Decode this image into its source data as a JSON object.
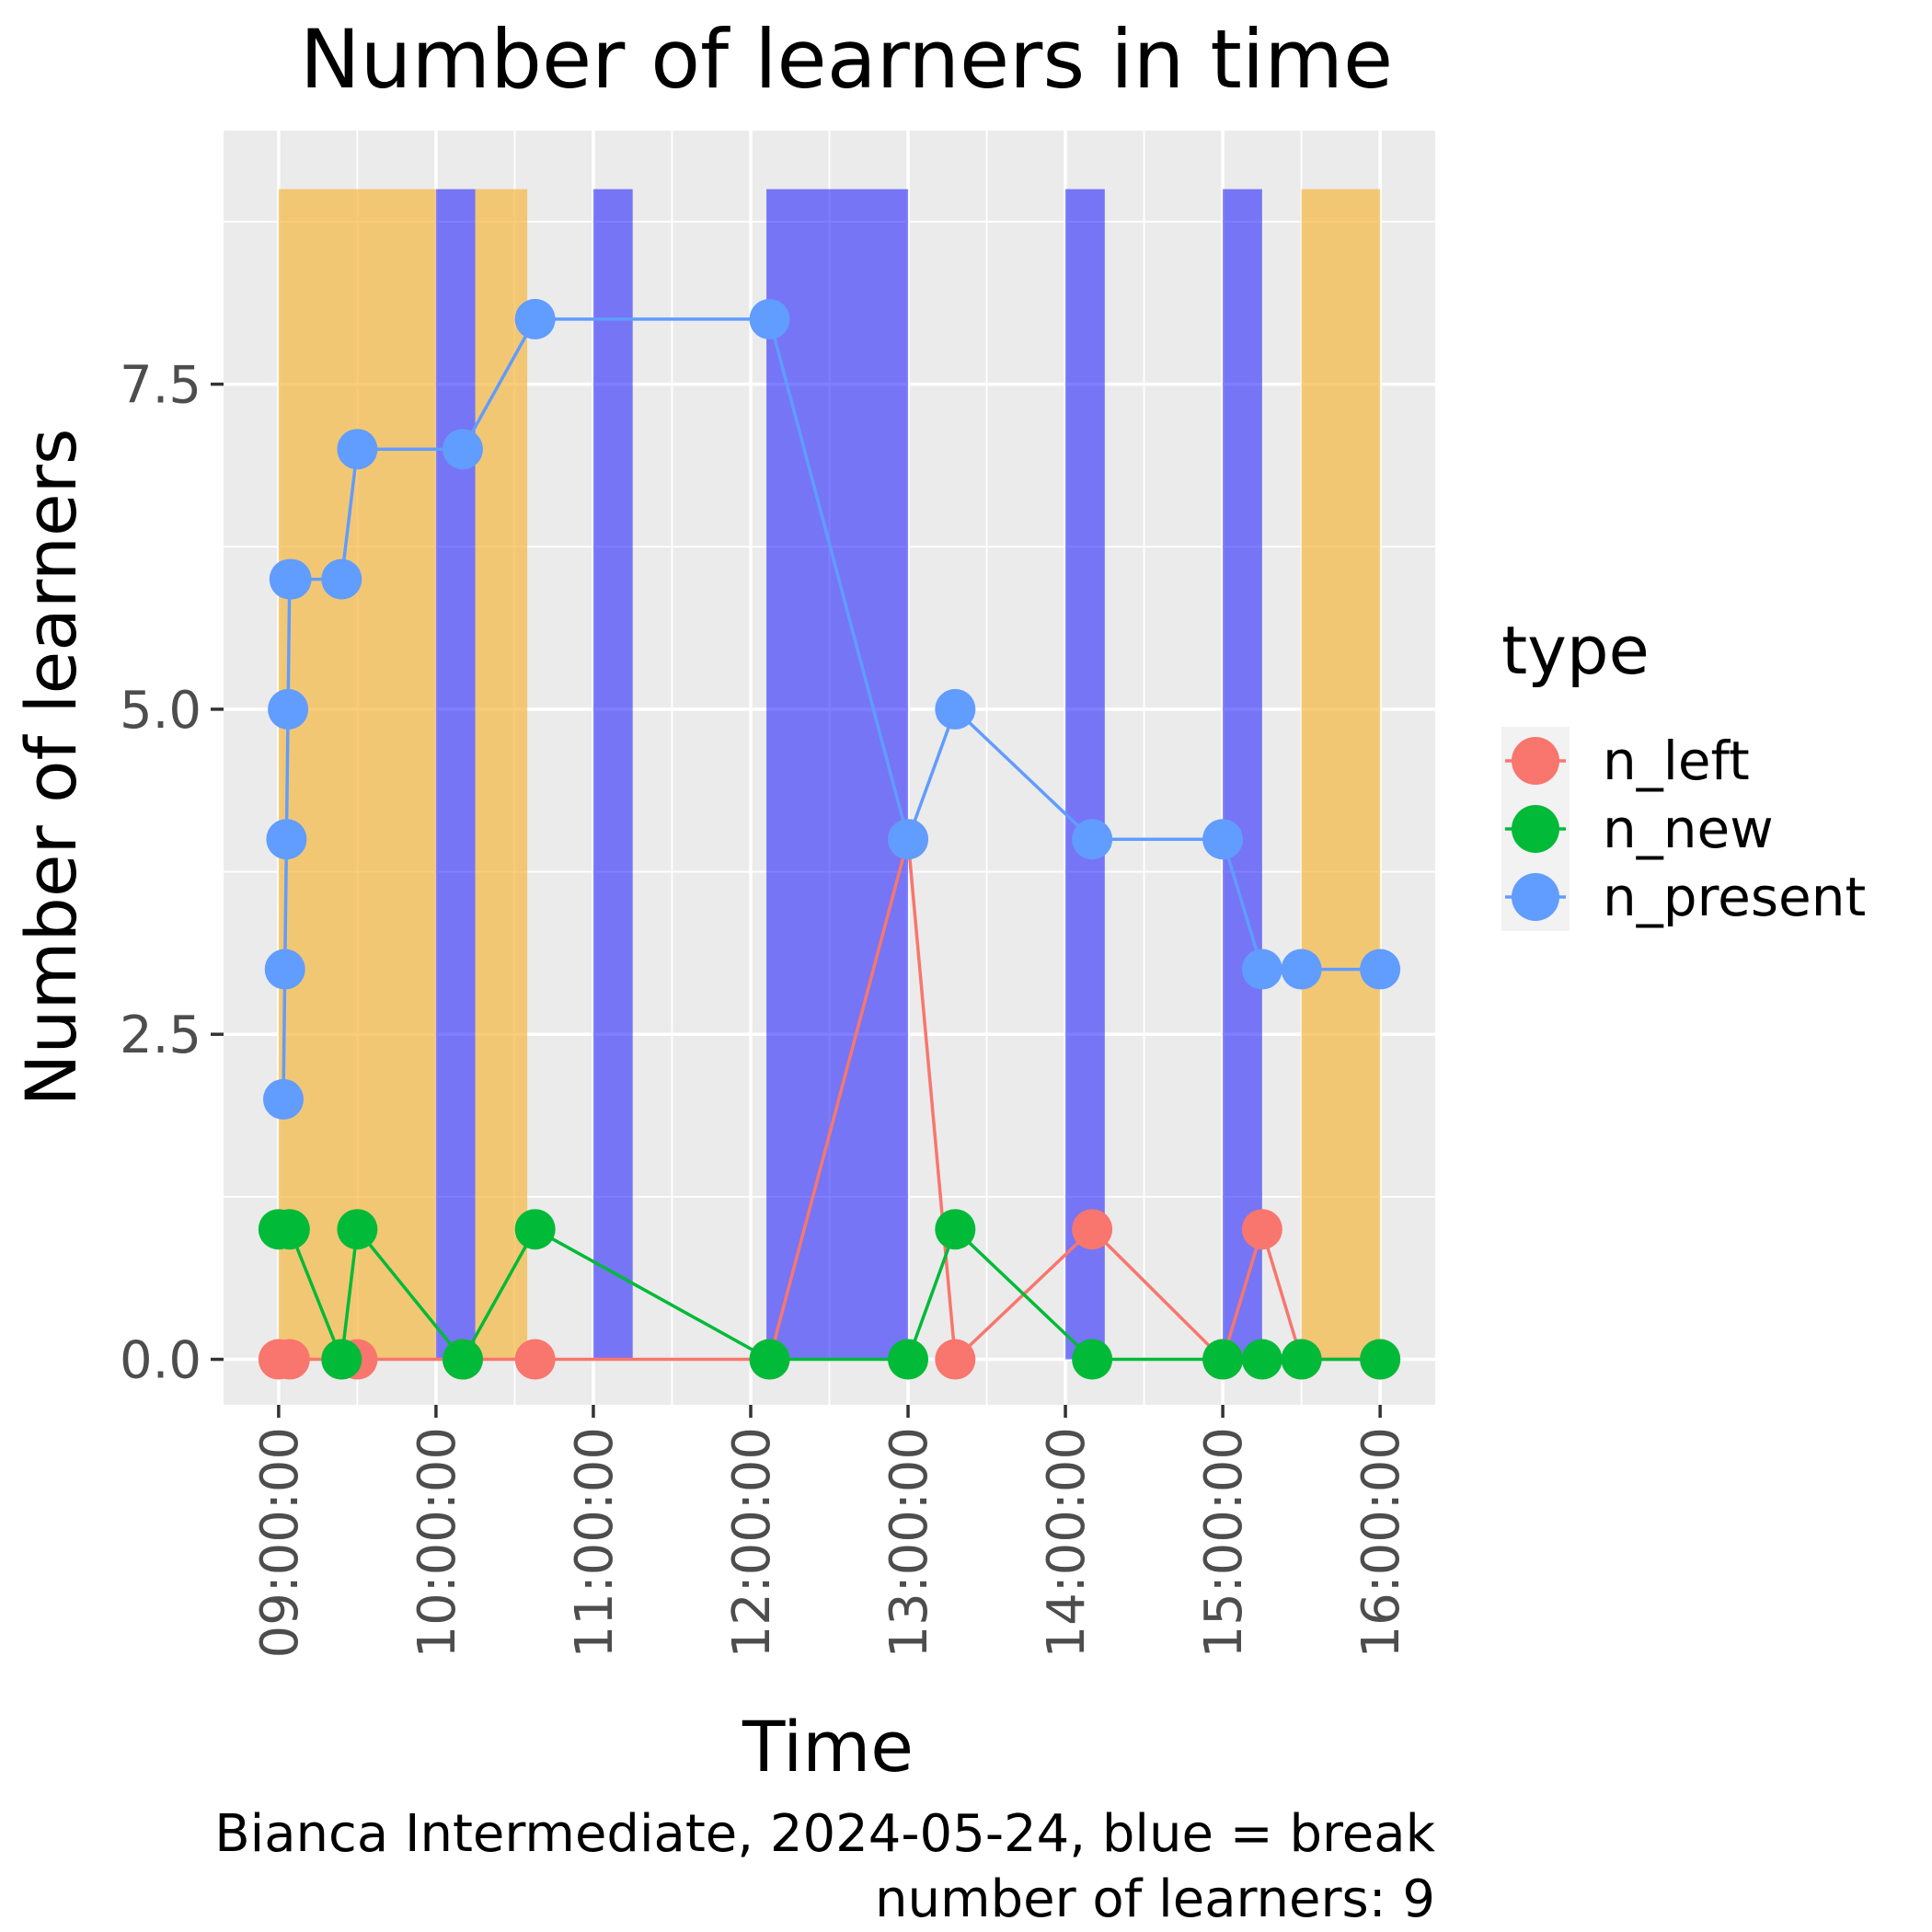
{
  "chart_data": {
    "type": "line",
    "title": "Number of learners in time",
    "xlabel": "Time",
    "ylabel": "Number of learners",
    "caption_lines": [
      "Bianca Intermediate, 2024-05-24, blue = break",
      "number of learners: 9"
    ],
    "x_domain_hours": [
      8.65,
      16.35
    ],
    "x_ticks": [
      {
        "hour": 9,
        "label": "09:00:00"
      },
      {
        "hour": 10,
        "label": "10:00:00"
      },
      {
        "hour": 11,
        "label": "11:00:00"
      },
      {
        "hour": 12,
        "label": "12:00:00"
      },
      {
        "hour": 13,
        "label": "13:00:00"
      },
      {
        "hour": 14,
        "label": "14:00:00"
      },
      {
        "hour": 15,
        "label": "15:00:00"
      },
      {
        "hour": 16,
        "label": "16:00:00"
      }
    ],
    "ylim": [
      -0.35,
      9.45
    ],
    "y_ticks": [
      {
        "value": 0,
        "label": "0.0"
      },
      {
        "value": 2.5,
        "label": "2.5"
      },
      {
        "value": 5,
        "label": "5.0"
      },
      {
        "value": 7.5,
        "label": "7.5"
      }
    ],
    "grid": true,
    "legend": {
      "title": "type",
      "placement": "right"
    },
    "shaded_regions": [
      {
        "kind": "session",
        "start": 9.0,
        "end": 10.0,
        "height": 9,
        "color": "#f5b841"
      },
      {
        "kind": "break",
        "start": 10.0,
        "end": 10.25,
        "height": 9,
        "color": "#0000ff"
      },
      {
        "kind": "session",
        "start": 10.25,
        "end": 10.58,
        "height": 9,
        "color": "#f5b841"
      },
      {
        "kind": "break",
        "start": 11.0,
        "end": 11.25,
        "height": 9,
        "color": "#0000ff"
      },
      {
        "kind": "break",
        "start": 12.1,
        "end": 13.0,
        "height": 9,
        "color": "#0000ff"
      },
      {
        "kind": "break",
        "start": 14.0,
        "end": 14.25,
        "height": 9,
        "color": "#0000ff"
      },
      {
        "kind": "break",
        "start": 15.0,
        "end": 15.25,
        "height": 9,
        "color": "#0000ff"
      },
      {
        "kind": "session",
        "start": 15.5,
        "end": 16.0,
        "height": 9,
        "color": "#f5b841"
      }
    ],
    "series": [
      {
        "name": "n_left",
        "color": "#f8766d",
        "x": [
          9.0,
          9.07,
          9.4,
          9.5,
          10.17,
          10.63,
          12.12,
          13.0,
          13.3,
          14.17,
          15.0,
          15.25,
          15.5,
          16.0
        ],
        "y": [
          0,
          0,
          0,
          0,
          0,
          0,
          0,
          4,
          0,
          1,
          0,
          1,
          0,
          0
        ]
      },
      {
        "name": "n_new",
        "color": "#00ba38",
        "x": [
          9.0,
          9.07,
          9.4,
          9.5,
          10.17,
          10.63,
          12.12,
          13.0,
          13.3,
          14.17,
          15.0,
          15.25,
          15.5,
          16.0
        ],
        "y": [
          1,
          1,
          0,
          1,
          0,
          1,
          0,
          0,
          1,
          0,
          0,
          0,
          0,
          0
        ]
      },
      {
        "name": "n_present",
        "color": "#619cff",
        "x": [
          9.03,
          9.04,
          9.05,
          9.06,
          9.07,
          9.08,
          9.4,
          9.5,
          10.17,
          10.63,
          12.12,
          13.0,
          13.3,
          14.17,
          15.0,
          15.25,
          15.5,
          16.0
        ],
        "y": [
          2,
          3,
          4,
          5,
          6,
          6,
          6,
          7,
          7,
          8,
          8,
          4,
          5,
          4,
          4,
          3,
          3,
          3
        ]
      }
    ]
  }
}
